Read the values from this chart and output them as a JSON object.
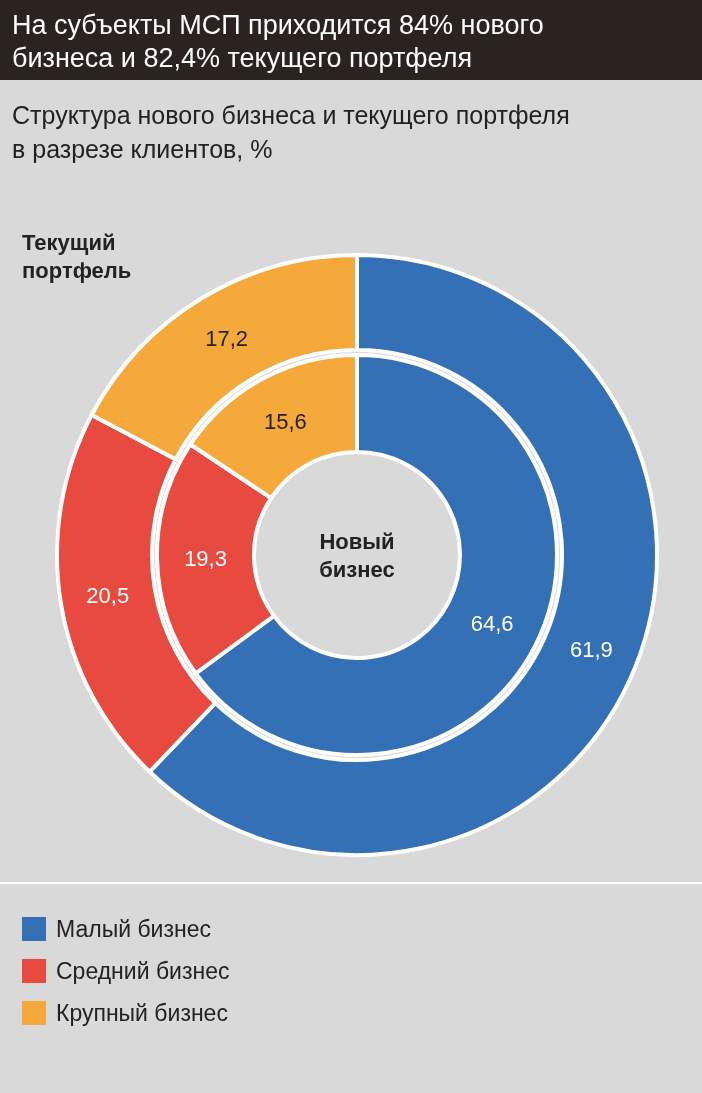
{
  "chart_data": {
    "type": "donut",
    "title": "На субъекты МСП приходится 84% нового бизнеса и 82,4% текущего портфеля",
    "subtitle": "Структура нового бизнеса и текущего портфеля в разрезе клиентов, %",
    "categories": [
      "Малый бизнес",
      "Средний бизнес",
      "Крупный бизнес"
    ],
    "colors": [
      "#3470b6",
      "#e94a40",
      "#f5a93b"
    ],
    "series": [
      {
        "name": "Текущий портфель",
        "values": [
          61.9,
          20.5,
          17.2
        ],
        "value_labels": [
          "61,9",
          "20,5",
          "17,2"
        ]
      },
      {
        "name": "Новый бизнес",
        "values": [
          64.6,
          19.3,
          15.6
        ],
        "value_labels": [
          "64,6",
          "19,3",
          "15,6"
        ]
      }
    ],
    "legend": "bottom"
  }
}
